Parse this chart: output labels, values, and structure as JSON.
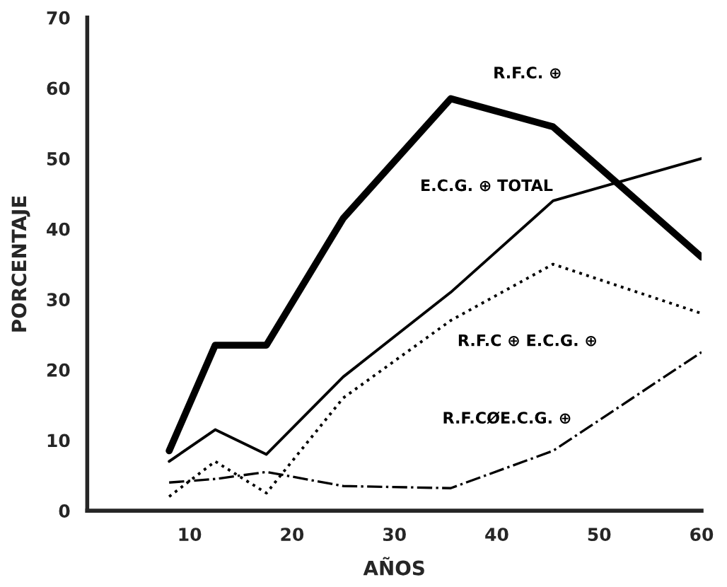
{
  "chart_data": {
    "type": "line",
    "xlabel": "AÑOS",
    "ylabel": "PORCENTAJE",
    "x": [
      8,
      12.5,
      17.5,
      25,
      35.5,
      45.5,
      60
    ],
    "xlim": [
      0,
      60
    ],
    "xticks": [
      10,
      20,
      30,
      40,
      50,
      60
    ],
    "ylim": [
      0,
      70
    ],
    "yticks": [
      0,
      10,
      20,
      30,
      40,
      50,
      60,
      70
    ],
    "grid": false,
    "legend": false,
    "marker": "none",
    "series": [
      {
        "name": "R.F.C. ⊕",
        "color": "#000000",
        "line_style": "solid",
        "values": [
          8.5,
          23.5,
          23.5,
          41.5,
          58.5,
          54.5,
          36
        ]
      },
      {
        "name": "E.C.G. ⊕ TOTAL",
        "color": "#000000",
        "line_style": "solid",
        "values": [
          7,
          11.5,
          8,
          19,
          31,
          44,
          50
        ]
      },
      {
        "name": "R.F.C ⊕ E.C.G. ⊕",
        "color": "#000000",
        "line_style": "dotted",
        "values": [
          2,
          7,
          2.5,
          16,
          27,
          35,
          28
        ]
      },
      {
        "name": "R.F.CØE.C.G. ⊕",
        "color": "#000000",
        "line_style": "dashdot",
        "values": [
          4,
          4.5,
          5.5,
          3.5,
          3.2,
          8.5,
          22.5
        ]
      }
    ]
  }
}
